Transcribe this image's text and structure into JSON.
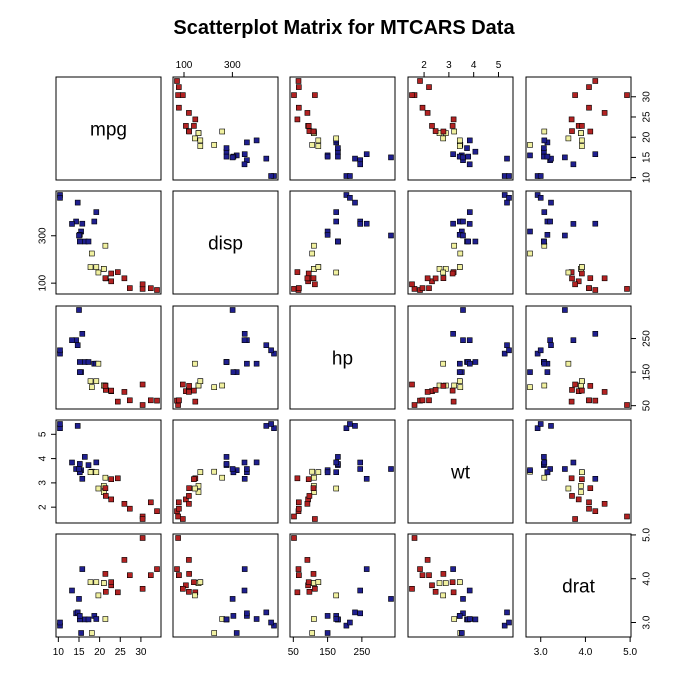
{
  "chart_data": {
    "type": "scatter",
    "title": "Scatterplot Matrix for MTCARS Data",
    "variables": [
      "mpg",
      "disp",
      "hp",
      "wt",
      "drat"
    ],
    "ranges": {
      "mpg": [
        10.4,
        33.9
      ],
      "disp": [
        71.1,
        472
      ],
      "hp": [
        52,
        335
      ],
      "wt": [
        1.513,
        5.424
      ],
      "drat": [
        2.76,
        4.93
      ]
    },
    "ticks": {
      "mpg": {
        "values": [
          10,
          15,
          20,
          25,
          30
        ],
        "labels": [
          "10",
          "15",
          "20",
          "25",
          "30"
        ]
      },
      "disp": {
        "values": [
          100,
          300
        ],
        "labels": [
          "100",
          "300"
        ]
      },
      "hp": {
        "values": [
          50,
          150,
          250
        ],
        "labels": [
          "50",
          "150",
          "250"
        ]
      },
      "wt": {
        "values": [
          2,
          3,
          4,
          5
        ],
        "labels": [
          "2",
          "3",
          "4",
          "5"
        ]
      },
      "drat": {
        "values": [
          3.0,
          4.0,
          5.0
        ],
        "labels": [
          "3.0",
          "4.0",
          "5.0"
        ]
      }
    },
    "group_colors": {
      "4": "#b22222",
      "6": "#f0f0a0",
      "8": "#1f1f8f"
    },
    "points": [
      {
        "mpg": 21.0,
        "disp": 160,
        "hp": 110,
        "wt": 2.62,
        "drat": 3.9,
        "g": "6"
      },
      {
        "mpg": 21.0,
        "disp": 160,
        "hp": 110,
        "wt": 2.875,
        "drat": 3.9,
        "g": "6"
      },
      {
        "mpg": 22.8,
        "disp": 108,
        "hp": 93,
        "wt": 2.32,
        "drat": 3.85,
        "g": "4"
      },
      {
        "mpg": 21.4,
        "disp": 258,
        "hp": 110,
        "wt": 3.215,
        "drat": 3.08,
        "g": "6"
      },
      {
        "mpg": 18.7,
        "disp": 360,
        "hp": 175,
        "wt": 3.44,
        "drat": 3.15,
        "g": "8"
      },
      {
        "mpg": 18.1,
        "disp": 225,
        "hp": 105,
        "wt": 3.46,
        "drat": 2.76,
        "g": "6"
      },
      {
        "mpg": 14.3,
        "disp": 360,
        "hp": 245,
        "wt": 3.57,
        "drat": 3.21,
        "g": "8"
      },
      {
        "mpg": 24.4,
        "disp": 146.7,
        "hp": 62,
        "wt": 3.19,
        "drat": 3.69,
        "g": "4"
      },
      {
        "mpg": 22.8,
        "disp": 140.8,
        "hp": 95,
        "wt": 3.15,
        "drat": 3.92,
        "g": "4"
      },
      {
        "mpg": 19.2,
        "disp": 167.6,
        "hp": 123,
        "wt": 3.44,
        "drat": 3.92,
        "g": "6"
      },
      {
        "mpg": 17.8,
        "disp": 167.6,
        "hp": 123,
        "wt": 3.44,
        "drat": 3.92,
        "g": "6"
      },
      {
        "mpg": 16.4,
        "disp": 275.8,
        "hp": 180,
        "wt": 4.07,
        "drat": 3.07,
        "g": "8"
      },
      {
        "mpg": 17.3,
        "disp": 275.8,
        "hp": 180,
        "wt": 3.73,
        "drat": 3.07,
        "g": "8"
      },
      {
        "mpg": 15.2,
        "disp": 275.8,
        "hp": 180,
        "wt": 3.78,
        "drat": 3.07,
        "g": "8"
      },
      {
        "mpg": 10.4,
        "disp": 472,
        "hp": 205,
        "wt": 5.25,
        "drat": 2.93,
        "g": "8"
      },
      {
        "mpg": 10.4,
        "disp": 460,
        "hp": 215,
        "wt": 5.424,
        "drat": 3.0,
        "g": "8"
      },
      {
        "mpg": 14.7,
        "disp": 440,
        "hp": 230,
        "wt": 5.345,
        "drat": 3.23,
        "g": "8"
      },
      {
        "mpg": 32.4,
        "disp": 78.7,
        "hp": 66,
        "wt": 2.2,
        "drat": 4.08,
        "g": "4"
      },
      {
        "mpg": 30.4,
        "disp": 75.7,
        "hp": 52,
        "wt": 1.615,
        "drat": 4.93,
        "g": "4"
      },
      {
        "mpg": 33.9,
        "disp": 71.1,
        "hp": 65,
        "wt": 1.835,
        "drat": 4.22,
        "g": "4"
      },
      {
        "mpg": 21.5,
        "disp": 120.1,
        "hp": 97,
        "wt": 2.465,
        "drat": 3.7,
        "g": "4"
      },
      {
        "mpg": 15.5,
        "disp": 318,
        "hp": 150,
        "wt": 3.52,
        "drat": 2.76,
        "g": "8"
      },
      {
        "mpg": 15.2,
        "disp": 304,
        "hp": 150,
        "wt": 3.435,
        "drat": 3.15,
        "g": "8"
      },
      {
        "mpg": 13.3,
        "disp": 350,
        "hp": 245,
        "wt": 3.84,
        "drat": 3.73,
        "g": "8"
      },
      {
        "mpg": 19.2,
        "disp": 400,
        "hp": 175,
        "wt": 3.845,
        "drat": 3.08,
        "g": "8"
      },
      {
        "mpg": 27.3,
        "disp": 79,
        "hp": 66,
        "wt": 1.935,
        "drat": 4.08,
        "g": "4"
      },
      {
        "mpg": 26.0,
        "disp": 120.3,
        "hp": 91,
        "wt": 2.14,
        "drat": 4.43,
        "g": "4"
      },
      {
        "mpg": 30.4,
        "disp": 95.1,
        "hp": 113,
        "wt": 1.513,
        "drat": 3.77,
        "g": "4"
      },
      {
        "mpg": 15.8,
        "disp": 351,
        "hp": 264,
        "wt": 3.17,
        "drat": 4.22,
        "g": "8"
      },
      {
        "mpg": 19.7,
        "disp": 145,
        "hp": 175,
        "wt": 2.77,
        "drat": 3.62,
        "g": "6"
      },
      {
        "mpg": 15.0,
        "disp": 301,
        "hp": 335,
        "wt": 3.57,
        "drat": 3.54,
        "g": "8"
      },
      {
        "mpg": 21.4,
        "disp": 121,
        "hp": 109,
        "wt": 2.78,
        "drat": 4.11,
        "g": "4"
      }
    ]
  }
}
